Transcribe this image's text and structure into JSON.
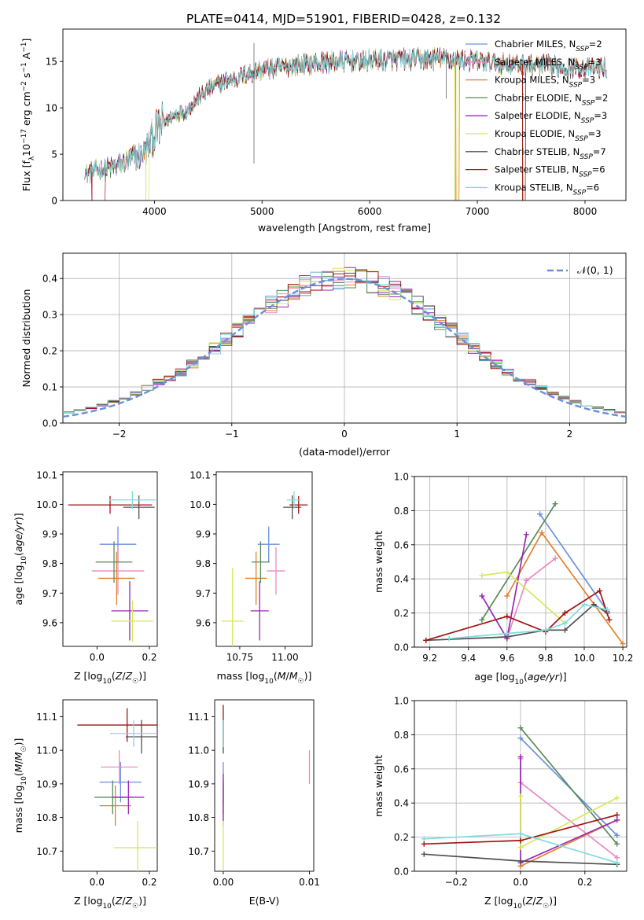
{
  "figure_title": "PLATE=0414, MJD=51901, FIBERID=0428, z=0.132",
  "colors": {
    "chabrier_miles": "#6a8fdc",
    "salpeter_miles": "#e78ac3",
    "kroupa_miles": "#e0822f",
    "chabrier_elodie": "#5a8a5a",
    "salpeter_elodie": "#9b27b5",
    "kroupa_elodie": "#d7e85a",
    "chabrier_stelib": "#505050",
    "salpeter_stelib": "#a01414",
    "kroupa_stelib": "#80dbe0",
    "normal_curve": "#6a8fdc"
  },
  "chart_data": [
    {
      "id": "spectrum",
      "type": "line",
      "xlabel": "wavelength [Angstrom, rest frame]",
      "ylabel": "Flux [f_λ10⁻¹⁷ erg cm⁻² s⁻¹ A⁻¹]",
      "xlim": [
        3150,
        8380
      ],
      "ylim": [
        0,
        18.5
      ],
      "xticks": [
        "4000",
        "5000",
        "6000",
        "7000",
        "8000"
      ],
      "yticks": [
        "0",
        "5",
        "10",
        "15"
      ],
      "grid": false,
      "legend_position": "upper-right",
      "legend": [
        {
          "label": "Chabrier MILES, N",
          "sub": "SSP",
          "value": "=2",
          "color_key": "chabrier_miles"
        },
        {
          "label": "Salpeter MILES, N",
          "sub": "SSP",
          "value": "=3",
          "color_key": "salpeter_miles"
        },
        {
          "label": "Kroupa MILES, N",
          "sub": "SSP",
          "value": "=3",
          "color_key": "kroupa_miles"
        },
        {
          "label": "Chabrier ELODIE, N",
          "sub": "SSP",
          "value": "=2",
          "color_key": "chabrier_elodie"
        },
        {
          "label": "Salpeter ELODIE, N",
          "sub": "SSP",
          "value": "=3",
          "color_key": "salpeter_elodie"
        },
        {
          "label": "Kroupa ELODIE, N",
          "sub": "SSP",
          "value": "=3",
          "color_key": "kroupa_elodie"
        },
        {
          "label": "Chabrier STELIB, N",
          "sub": "SSP",
          "value": "=7",
          "color_key": "chabrier_stelib"
        },
        {
          "label": "Salpeter STELIB, N",
          "sub": "SSP",
          "value": "=6",
          "color_key": "salpeter_stelib"
        },
        {
          "label": "Kroupa STELIB, N",
          "sub": "SSP",
          "value": "=6",
          "color_key": "kroupa_stelib"
        }
      ],
      "continuum": {
        "x": [
          3350,
          3500,
          3600,
          3700,
          3800,
          3900,
          4000,
          4100,
          4200,
          4300,
          4400,
          4500,
          4600,
          4700,
          4800,
          4900,
          5000,
          5200,
          5400,
          5600,
          5800,
          6000,
          6200,
          6400,
          6600,
          6800,
          7000,
          7200,
          7400,
          7600,
          7800,
          8000,
          8200
        ],
        "y": [
          2.9,
          3.3,
          3.5,
          3.9,
          4.6,
          5.0,
          7.2,
          8.5,
          9.3,
          9.6,
          11.0,
          12.0,
          12.6,
          13.0,
          13.4,
          13.8,
          14.1,
          14.4,
          14.7,
          14.9,
          15.0,
          15.1,
          15.2,
          15.2,
          15.3,
          15.2,
          15.0,
          14.8,
          14.6,
          14.6,
          14.4,
          14.3,
          14.3
        ]
      },
      "dropouts": [
        {
          "series": "salpeter_stelib",
          "x": [
            3420,
            3520
          ]
        },
        {
          "series": "kroupa_elodie",
          "x": [
            3920,
            3930
          ]
        },
        {
          "series": "kroupa_elodie",
          "x": [
            6790,
            6800
          ]
        },
        {
          "series": "kroupa_miles",
          "x": [
            6800,
            6810
          ]
        },
        {
          "series": "kroupa_miles",
          "x": [
            7420,
            7430
          ]
        },
        {
          "series": "salpeter_stelib",
          "x": [
            7420,
            7430
          ]
        }
      ],
      "spikes": [
        {
          "x": 4925,
          "y0": 4.0,
          "y1": 17.0
        },
        {
          "x": 6710,
          "y0": 11.0,
          "y1": 16.3
        }
      ]
    },
    {
      "id": "residual_histogram",
      "type": "histogram",
      "xlabel": "(data-model)/error",
      "ylabel": "Normed distribution",
      "xlim": [
        -2.5,
        2.5
      ],
      "ylim": [
        0,
        0.47
      ],
      "xticks": [
        "−2",
        "−1",
        "0",
        "1",
        "2"
      ],
      "yticks": [
        "0.0",
        "0.1",
        "0.2",
        "0.3",
        "0.4"
      ],
      "grid": true,
      "bin_width": 0.1,
      "normal_curve": {
        "label": "𝒩(0, 1)",
        "mu": 0,
        "sigma": 1,
        "style": "dashed"
      },
      "legend_position": "upper-right"
    },
    {
      "id": "age_vs_Z",
      "type": "errorbar",
      "xlabel": "Z [log₁₀(Z/Z☉)]",
      "ylabel": "age  [log₁₀(age/yr)]",
      "xlim": [
        -0.13,
        0.23
      ],
      "ylim": [
        9.52,
        10.11
      ],
      "xticks": [
        0.0,
        0.2
      ],
      "yticks": [
        9.6,
        9.7,
        9.8,
        9.9,
        10.0,
        10.1
      ],
      "points": [
        {
          "color_key": "chabrier_miles",
          "x": 0.08,
          "y": 9.865,
          "xerr": 0.07,
          "yerr": 0.06
        },
        {
          "color_key": "salpeter_miles",
          "x": 0.08,
          "y": 9.775,
          "xerr": 0.1,
          "yerr": 0.08
        },
        {
          "color_key": "kroupa_miles",
          "x": 0.075,
          "y": 9.75,
          "xerr": 0.07,
          "yerr": 0.09
        },
        {
          "color_key": "chabrier_elodie",
          "x": 0.065,
          "y": 9.805,
          "xerr": 0.07,
          "yerr": 0.07
        },
        {
          "color_key": "salpeter_elodie",
          "x": 0.125,
          "y": 9.64,
          "xerr": 0.07,
          "yerr": 0.1
        },
        {
          "color_key": "kroupa_elodie",
          "x": 0.135,
          "y": 9.605,
          "xerr": 0.08,
          "yerr": 0.07
        },
        {
          "color_key": "chabrier_stelib",
          "x": 0.16,
          "y": 9.99,
          "xerr": 0.06,
          "yerr": 0.04
        },
        {
          "color_key": "salpeter_stelib",
          "x": 0.05,
          "y": 9.998,
          "xerr": 0.16,
          "yerr": 0.03
        },
        {
          "color_key": "kroupa_stelib",
          "x": 0.135,
          "y": 10.015,
          "xerr": 0.09,
          "yerr": 0.03
        }
      ]
    },
    {
      "id": "age_vs_mass",
      "type": "errorbar",
      "xlabel": "mass [log₁₀(M/M☉)]",
      "ylabel": "",
      "xlim": [
        10.62,
        11.15
      ],
      "ylim": [
        9.52,
        10.11
      ],
      "xticks": [
        10.75,
        11.0
      ],
      "yticks": [
        9.6,
        9.7,
        9.8,
        9.9,
        10.0,
        10.1
      ],
      "points": [
        {
          "color_key": "chabrier_miles",
          "x": 10.91,
          "y": 9.865,
          "xerr": 0.06,
          "yerr": 0.06
        },
        {
          "color_key": "salpeter_miles",
          "x": 10.95,
          "y": 9.775,
          "xerr": 0.05,
          "yerr": 0.08
        },
        {
          "color_key": "kroupa_miles",
          "x": 10.84,
          "y": 9.75,
          "xerr": 0.06,
          "yerr": 0.09
        },
        {
          "color_key": "chabrier_elodie",
          "x": 10.865,
          "y": 9.805,
          "xerr": 0.05,
          "yerr": 0.07
        },
        {
          "color_key": "salpeter_elodie",
          "x": 10.86,
          "y": 9.64,
          "xerr": 0.05,
          "yerr": 0.1
        },
        {
          "color_key": "kroupa_elodie",
          "x": 10.71,
          "y": 9.605,
          "xerr": 0.06,
          "yerr": 0.18
        },
        {
          "color_key": "chabrier_stelib",
          "x": 11.04,
          "y": 9.99,
          "xerr": 0.05,
          "yerr": 0.04
        },
        {
          "color_key": "salpeter_stelib",
          "x": 11.075,
          "y": 9.998,
          "xerr": 0.05,
          "yerr": 0.03
        },
        {
          "color_key": "kroupa_stelib",
          "x": 11.05,
          "y": 10.015,
          "xerr": 0.04,
          "yerr": 0.03
        }
      ]
    },
    {
      "id": "weight_vs_age",
      "type": "line",
      "xlabel": "age  [log₁₀(age/yr)]",
      "ylabel": "mass weight",
      "xlim": [
        9.12,
        10.22
      ],
      "ylim": [
        0,
        1.0
      ],
      "xticks": [
        9.2,
        9.4,
        9.6,
        9.8,
        10.0,
        10.2
      ],
      "yticks": [
        0.0,
        0.2,
        0.4,
        0.6,
        0.8,
        1.0
      ],
      "grid": true,
      "series": [
        {
          "color_key": "chabrier_miles",
          "x": [
            9.77,
            10.12
          ],
          "y": [
            0.78,
            0.21
          ]
        },
        {
          "color_key": "salpeter_miles",
          "x": [
            9.6,
            9.7,
            9.85
          ],
          "y": [
            0.05,
            0.39,
            0.52
          ]
        },
        {
          "color_key": "kroupa_miles",
          "x": [
            9.6,
            9.78,
            10.2
          ],
          "y": [
            0.3,
            0.67,
            0.02
          ]
        },
        {
          "color_key": "chabrier_elodie",
          "x": [
            9.47,
            9.85
          ],
          "y": [
            0.16,
            0.84
          ]
        },
        {
          "color_key": "salpeter_elodie",
          "x": [
            9.47,
            9.6,
            9.7
          ],
          "y": [
            0.3,
            0.05,
            0.66
          ]
        },
        {
          "color_key": "kroupa_elodie",
          "x": [
            9.47,
            9.6,
            9.9
          ],
          "y": [
            0.42,
            0.44,
            0.14
          ]
        },
        {
          "color_key": "chabrier_stelib",
          "x": [
            9.18,
            9.6,
            9.8,
            9.9,
            10.05,
            10.12
          ],
          "y": [
            0.04,
            0.06,
            0.1,
            0.1,
            0.25,
            0.2
          ]
        },
        {
          "color_key": "salpeter_stelib",
          "x": [
            9.18,
            9.6,
            9.8,
            9.9,
            10.08,
            10.13
          ],
          "y": [
            0.04,
            0.18,
            0.09,
            0.2,
            0.33,
            0.16
          ]
        },
        {
          "color_key": "kroupa_stelib",
          "x": [
            9.3,
            9.6,
            9.8,
            9.9,
            10.0,
            10.12
          ],
          "y": [
            0.05,
            0.08,
            0.1,
            0.14,
            0.25,
            0.22
          ]
        }
      ]
    },
    {
      "id": "mass_vs_Z",
      "type": "errorbar",
      "xlabel": "Z [log₁₀(Z/Z☉)]",
      "ylabel": "mass [log₁₀(M/M☉)]",
      "xlim": [
        -0.13,
        0.23
      ],
      "ylim": [
        10.64,
        11.15
      ],
      "xticks": [
        0.0,
        0.2
      ],
      "yticks": [
        10.7,
        10.8,
        10.9,
        11.0,
        11.1
      ],
      "points": [
        {
          "color_key": "chabrier_miles",
          "x": 0.09,
          "y": 10.905,
          "xerr": 0.08,
          "yerr": 0.06
        },
        {
          "color_key": "salpeter_miles",
          "x": 0.085,
          "y": 10.95,
          "xerr": 0.07,
          "yerr": 0.05
        },
        {
          "color_key": "kroupa_miles",
          "x": 0.07,
          "y": 10.835,
          "xerr": 0.06,
          "yerr": 0.06
        },
        {
          "color_key": "chabrier_elodie",
          "x": 0.06,
          "y": 10.86,
          "xerr": 0.07,
          "yerr": 0.05
        },
        {
          "color_key": "salpeter_elodie",
          "x": 0.12,
          "y": 10.86,
          "xerr": 0.06,
          "yerr": 0.05
        },
        {
          "color_key": "kroupa_elodie",
          "x": 0.155,
          "y": 10.71,
          "xerr": 0.09,
          "yerr": 0.08
        },
        {
          "color_key": "chabrier_stelib",
          "x": 0.17,
          "y": 11.04,
          "xerr": 0.06,
          "yerr": 0.05
        },
        {
          "color_key": "salpeter_stelib",
          "x": 0.115,
          "y": 11.075,
          "xerr": 0.19,
          "yerr": 0.05
        },
        {
          "color_key": "kroupa_stelib",
          "x": 0.14,
          "y": 11.05,
          "xerr": 0.09,
          "yerr": 0.04
        }
      ]
    },
    {
      "id": "mass_vs_ebv",
      "type": "errorbar",
      "xlabel": "E(B-V)",
      "ylabel": "",
      "xlim": [
        -0.001,
        0.0105
      ],
      "ylim": [
        10.64,
        11.15
      ],
      "xticks": [
        "0.00",
        "0.01"
      ],
      "yticks": [
        10.7,
        10.8,
        10.9,
        11.0,
        11.1
      ],
      "points": [
        {
          "color_key": "chabrier_miles",
          "x": 0.0,
          "y": 10.905,
          "xerr": 0,
          "yerr": 0.06
        },
        {
          "color_key": "salpeter_miles",
          "x": 0.01,
          "y": 10.95,
          "xerr": 0,
          "yerr": 0.05
        },
        {
          "color_key": "kroupa_miles",
          "x": 0.0,
          "y": 10.835,
          "xerr": 0,
          "yerr": 0.06
        },
        {
          "color_key": "chabrier_elodie",
          "x": 0.0,
          "y": 10.86,
          "xerr": 0,
          "yerr": 0.05
        },
        {
          "color_key": "salpeter_elodie",
          "x": 0.0,
          "y": 10.86,
          "xerr": 0,
          "yerr": 0.07
        },
        {
          "color_key": "kroupa_elodie",
          "x": 0.0,
          "y": 10.71,
          "xerr": 0,
          "yerr": 0.08
        },
        {
          "color_key": "chabrier_stelib",
          "x": 0.0,
          "y": 11.04,
          "xerr": 0,
          "yerr": 0.05
        },
        {
          "color_key": "salpeter_stelib",
          "x": 0.0,
          "y": 11.075,
          "xerr": 0,
          "yerr": 0.06
        },
        {
          "color_key": "kroupa_stelib",
          "x": 0.0,
          "y": 11.05,
          "xerr": 0,
          "yerr": 0.04
        }
      ]
    },
    {
      "id": "weight_vs_Z",
      "type": "line",
      "xlabel": "Z [log₁₀(Z/Z☉)]",
      "ylabel": "mass weight",
      "xlim": [
        -0.33,
        0.33
      ],
      "ylim": [
        0,
        1.0
      ],
      "xticks": [
        -0.2,
        0.0,
        0.2
      ],
      "yticks": [
        0.0,
        0.2,
        0.4,
        0.6,
        0.8,
        1.0
      ],
      "grid": true,
      "series": [
        {
          "color_key": "chabrier_miles",
          "x": [
            0.0,
            0.3
          ],
          "y": [
            0.78,
            0.21
          ]
        },
        {
          "color_key": "salpeter_miles",
          "x": [
            0.0,
            0.0,
            0.3
          ],
          "y": [
            0.66,
            0.52,
            0.08
          ]
        },
        {
          "color_key": "kroupa_miles",
          "x": [
            0.0,
            0.3
          ],
          "y": [
            0.03,
            0.3
          ]
        },
        {
          "color_key": "chabrier_elodie",
          "x": [
            0.0,
            0.3
          ],
          "y": [
            0.84,
            0.16
          ]
        },
        {
          "color_key": "salpeter_elodie",
          "x": [
            0.0,
            0.0,
            0.3
          ],
          "y": [
            0.67,
            0.05,
            0.3
          ]
        },
        {
          "color_key": "kroupa_elodie",
          "x": [
            0.0,
            0.0,
            0.3
          ],
          "y": [
            0.44,
            0.14,
            0.43
          ]
        },
        {
          "color_key": "chabrier_stelib",
          "x": [
            -0.3,
            0.0,
            0.3
          ],
          "y": [
            0.1,
            0.06,
            0.04
          ]
        },
        {
          "color_key": "salpeter_stelib",
          "x": [
            -0.3,
            0.0,
            0.3
          ],
          "y": [
            0.16,
            0.18,
            0.33
          ]
        },
        {
          "color_key": "kroupa_stelib",
          "x": [
            -0.3,
            0.0,
            0.3
          ],
          "y": [
            0.19,
            0.22,
            0.05
          ]
        }
      ]
    }
  ]
}
